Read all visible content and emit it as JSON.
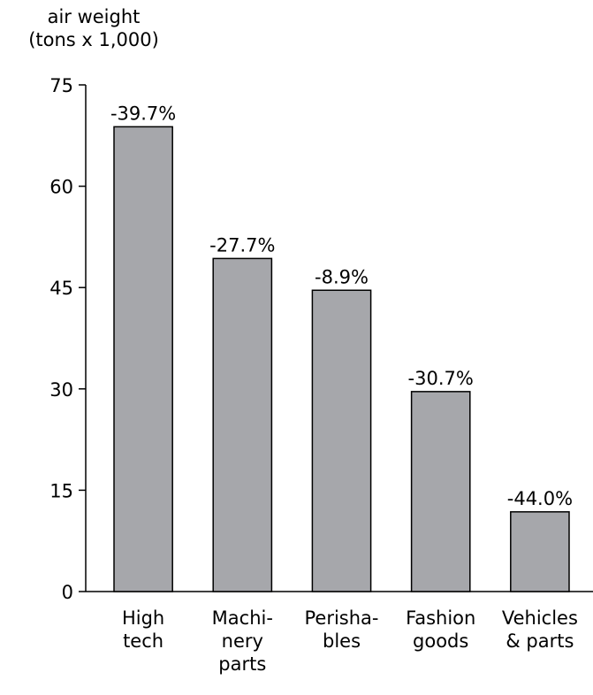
{
  "chart_data": {
    "type": "bar",
    "y_label": "air weight\n(tons x 1,000)",
    "categories": [
      "High\ntech",
      "Machi-\nnery\nparts",
      "Perisha-\nbles",
      "Fashion\ngoods",
      "Vehicles\n& parts"
    ],
    "values": [
      68.8,
      49.3,
      44.6,
      29.6,
      11.8
    ],
    "annotations": [
      "-39.7%",
      "-27.7%",
      "-8.9%",
      "-30.7%",
      "-44.0%"
    ],
    "color": "#a6a7ab",
    "ylim": [
      0,
      75
    ],
    "yticks": [
      0,
      15,
      30,
      45,
      60,
      75
    ],
    "grid": false
  }
}
